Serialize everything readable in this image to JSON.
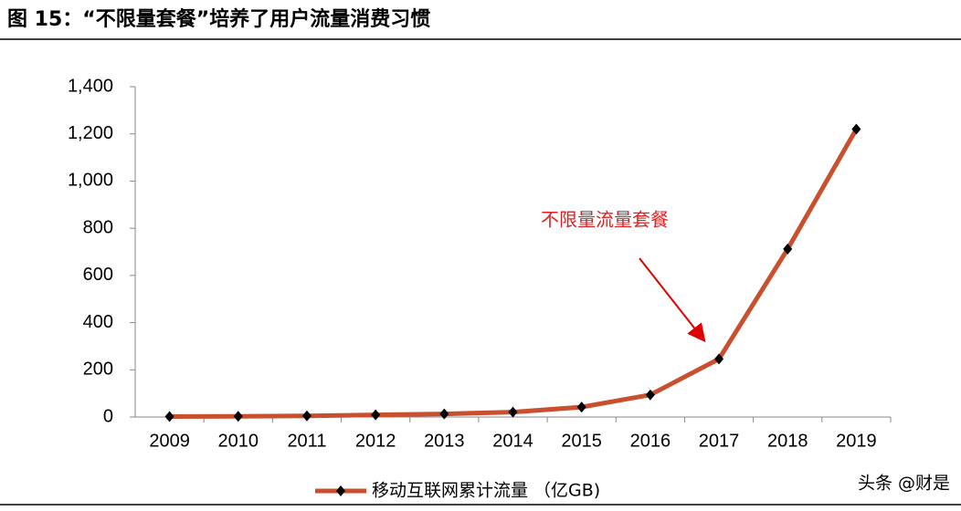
{
  "chart_data": {
    "type": "line",
    "title": "图 15：“不限量套餐”培养了用户流量消费习惯",
    "categories": [
      "2009",
      "2010",
      "2011",
      "2012",
      "2013",
      "2014",
      "2015",
      "2016",
      "2017",
      "2018",
      "2019"
    ],
    "series": [
      {
        "name": "移动互联网累计流量 （亿GB)",
        "color": "#c9502e",
        "values": [
          2,
          3,
          5,
          9,
          13,
          21,
          42,
          94,
          246,
          712,
          1220
        ]
      }
    ],
    "ylim": [
      0,
      1400
    ],
    "yticks": [
      0,
      200,
      400,
      600,
      800,
      {
        "value": 1000,
        "label": "1,000"
      },
      {
        "value": 1200,
        "label": "1,200"
      },
      {
        "value": 1400,
        "label": "1,400"
      }
    ],
    "annotation": "不限量流量套餐",
    "watermark": "头条 @财是"
  }
}
